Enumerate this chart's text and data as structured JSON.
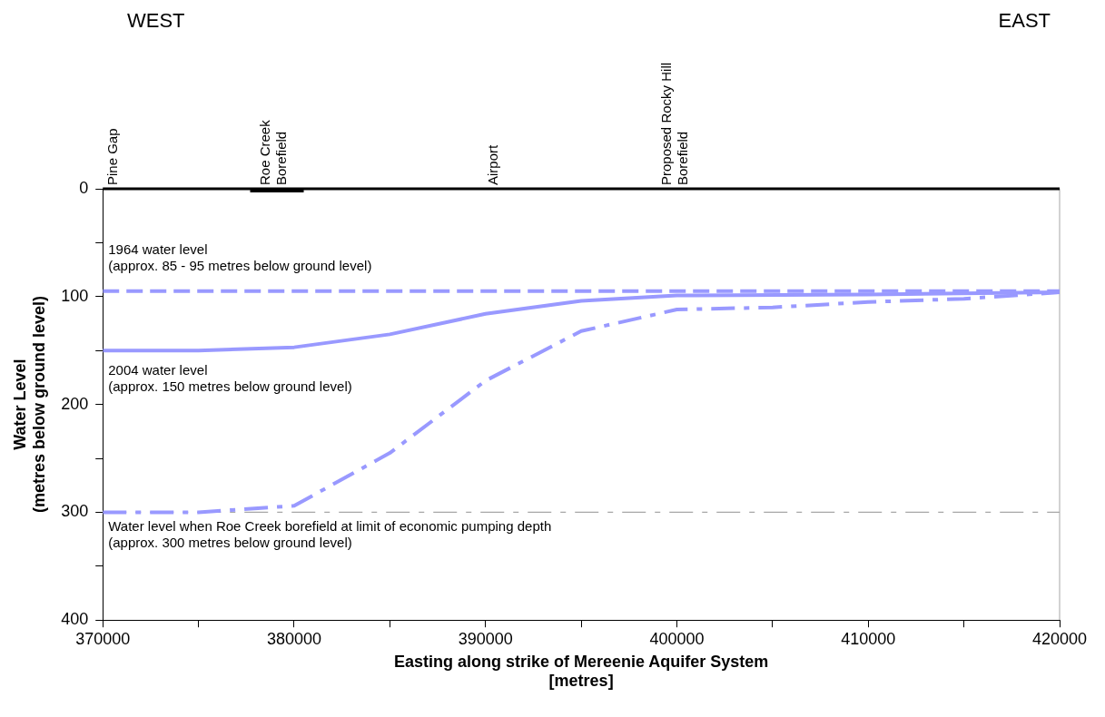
{
  "chart_data": {
    "type": "line",
    "xlabel": "Easting along strike of Mereenie Aquifer System\n[metres]",
    "ylabel": "Water Level\n(metres below ground level)",
    "xlim": [
      370000,
      420000
    ],
    "xticks": [
      370000,
      {
        "value": 375000,
        "label": null
      },
      380000,
      {
        "value": 385000,
        "label": null
      },
      390000,
      {
        "value": 395000,
        "label": null
      },
      400000,
      {
        "value": 405000,
        "label": null
      },
      410000,
      {
        "value": 415000,
        "label": null
      },
      420000
    ],
    "ylim": [
      400,
      0
    ],
    "yticks": [
      0,
      {
        "value": 50,
        "label": null
      },
      100,
      {
        "value": 150,
        "label": null
      },
      200,
      {
        "value": 250,
        "label": null
      },
      300,
      {
        "value": 350,
        "label": null
      },
      400
    ],
    "grid": false,
    "legend": false,
    "marker": "none",
    "series": [
      {
        "color": "#9999ff",
        "line_style": "dashed",
        "x": [
          370000,
          420000
        ],
        "values": [
          95,
          95
        ]
      },
      {
        "color": "#9999ff",
        "line_style": "solid",
        "x": [
          370000,
          375000,
          380000,
          385000,
          390000,
          395000,
          400000,
          410000,
          420000
        ],
        "values": [
          150,
          150,
          147,
          135,
          116,
          104,
          99,
          98,
          96
        ]
      },
      {
        "color": "#9999ff",
        "line_style": "dashdot",
        "x": [
          370000,
          375000,
          380000,
          385000,
          390000,
          395000,
          400000,
          405000,
          410000,
          415000,
          420000
        ],
        "values": [
          300,
          300,
          294,
          245,
          178,
          132,
          112,
          110,
          105,
          102,
          96
        ]
      },
      {
        "color": "#000000",
        "line_style": "solid",
        "x": [
          377700,
          380500
        ],
        "values": [
          0,
          0
        ]
      }
    ],
    "ref_lines": [
      {
        "axis": "y",
        "value": 300,
        "color": "#a6a6a6",
        "line_style": "dashdot"
      }
    ],
    "annotations": [
      "WEST",
      "EAST",
      "1964 water level\n(approx. 85 - 95 metres below ground level)",
      "2004 water level\n(approx. 150 metres below ground level)",
      "Water level when Roe Creek borefield at limit of economic pumping depth\n(approx. 300 metres below ground level)",
      "Pine Gap",
      "Roe Creek\nBorefield",
      "Airport",
      "Proposed Rocky Hill\nBorefield"
    ]
  }
}
